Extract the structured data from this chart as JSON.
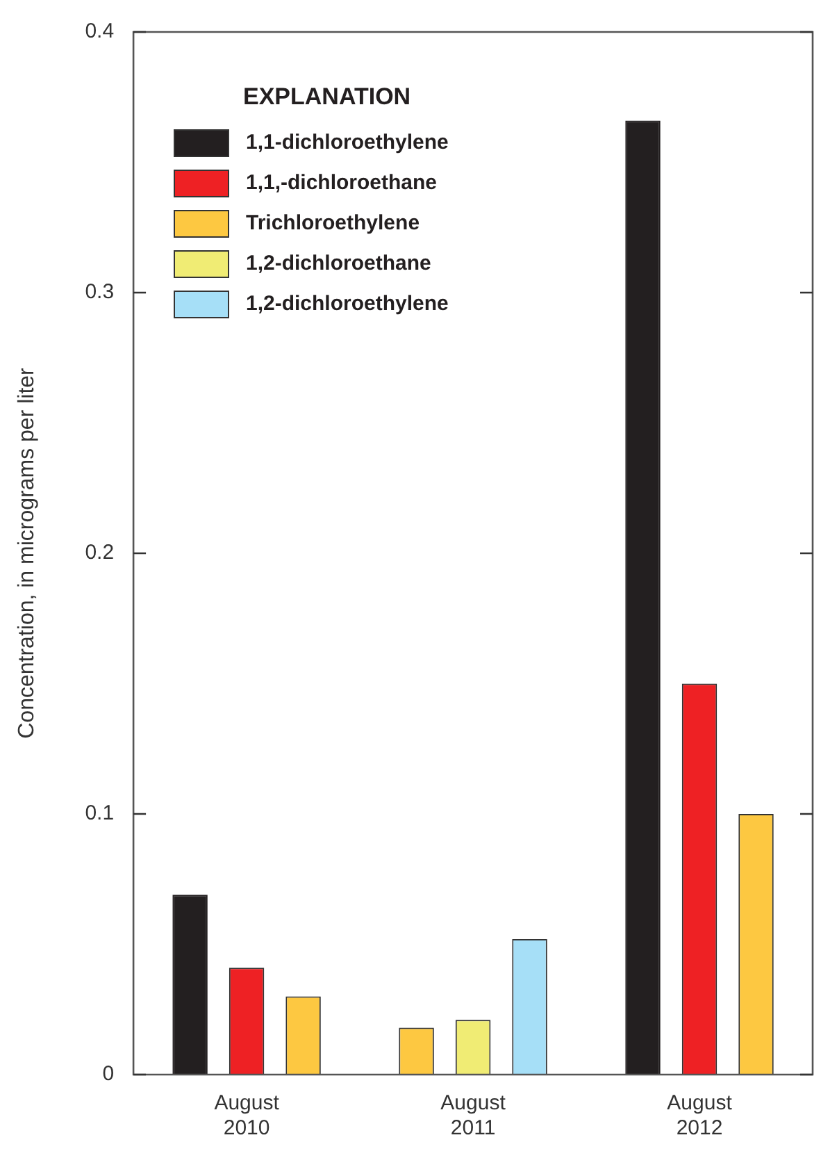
{
  "chart_data": {
    "type": "bar",
    "ylabel": "Concentration, in micrograms per liter",
    "categories": [
      "August 2010",
      "August 2011",
      "August 2012"
    ],
    "legend_title": "EXPLANATION",
    "series": [
      {
        "name": "1,1-dichloroethylene",
        "color": "#231f20",
        "values": [
          0.069,
          null,
          0.366
        ]
      },
      {
        "name": "1,1,-dichloroethane",
        "color": "#ee2124",
        "values": [
          0.041,
          null,
          0.15
        ]
      },
      {
        "name": "Trichloroethylene",
        "color": "#fdc841",
        "values": [
          0.03,
          0.018,
          0.1
        ]
      },
      {
        "name": "1,2-dichloroethane",
        "color": "#f0ec74",
        "values": [
          null,
          0.021,
          null
        ]
      },
      {
        "name": "1,2-dichloroethylene",
        "color": "#a6dff7",
        "values": [
          null,
          0.052,
          null
        ]
      }
    ],
    "ylim": [
      0,
      0.4
    ],
    "yticks": [
      0,
      0.1,
      0.2,
      0.3,
      0.4
    ],
    "grid": false,
    "legend": "top left"
  }
}
